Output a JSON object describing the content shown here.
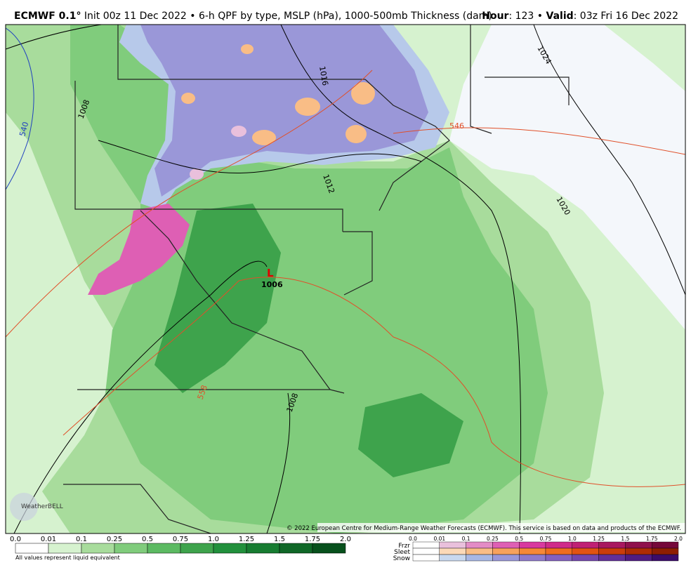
{
  "header": {
    "model": "ECMWF 0.1°",
    "description": "Init 00z 11 Dec 2022 • 6-h QPF by type, MSLP (hPa), 1000-500mb Thickness (dam)",
    "hour_label": "Hour",
    "hour_value": ": 123 • ",
    "valid_label": "Valid",
    "valid_value": ": 03z Fri 16 Dec 2022"
  },
  "map": {
    "contour_labels": [
      "1016",
      "1024",
      "1008",
      "540",
      "1012",
      "1020",
      "546",
      "1006",
      "558",
      "1008"
    ],
    "low_label": "L",
    "logo": "WeatherBELL",
    "credit": "© 2022 European Centre for Medium-Range Weather Forecasts (ECMWF). This service is based on data and products of the ECMWF."
  },
  "legend": {
    "rain": {
      "labels": [
        "0.0",
        "0.01",
        "0.1",
        "0.25",
        "0.5",
        "0.75",
        "1.0",
        "1.25",
        "1.5",
        "1.75",
        "2.0"
      ],
      "colors": [
        "#ffffff",
        "#d6f2cf",
        "#a8dc9c",
        "#80cc7c",
        "#5cba62",
        "#3ea34c",
        "#22903c",
        "#177c31",
        "#0f6727",
        "#07501c"
      ],
      "note": "All values represent liquid equivalent"
    },
    "types": {
      "labels": [
        "0.0",
        "0.01",
        "0.1",
        "0.25",
        "0.5",
        "0.75",
        "1.0",
        "1.25",
        "1.5",
        "1.75",
        "2.0"
      ],
      "rows": [
        {
          "name": "Frzr",
          "colors": [
            "#ffffff",
            "#e9c0dc",
            "#e38cc6",
            "#de5fb4",
            "#d8399f",
            "#cf2b8a",
            "#bf2074",
            "#a8175f",
            "#8f0f4c",
            "#75073a"
          ]
        },
        {
          "name": "Sleet",
          "colors": [
            "#ffffff",
            "#fbd9b8",
            "#f9bd86",
            "#f7a25c",
            "#f58837",
            "#ef6d1f",
            "#e25313",
            "#cb3d0a",
            "#ae2c05",
            "#8e1e02"
          ]
        },
        {
          "name": "Snow",
          "colors": [
            "#ffffff",
            "#c8d8ef",
            "#a7b7e4",
            "#9a97d8",
            "#8e79cb",
            "#8360bf",
            "#7446ad",
            "#622f98",
            "#4f1c82",
            "#3b0c69"
          ]
        }
      ]
    }
  }
}
